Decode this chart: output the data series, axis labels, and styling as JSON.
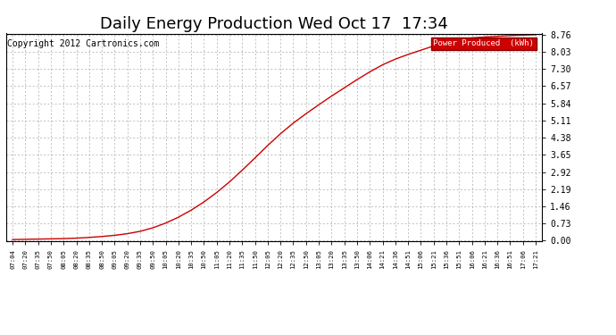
{
  "title": "Daily Energy Production Wed Oct 17  17:34",
  "copyright": "Copyright 2012 Cartronics.com",
  "legend_label": "Power Produced  (kWh)",
  "y_ticks": [
    0.0,
    0.73,
    1.46,
    2.19,
    2.92,
    3.65,
    4.38,
    5.11,
    5.84,
    6.57,
    7.3,
    8.03,
    8.76
  ],
  "y_max": 8.76,
  "y_min": 0.0,
  "line_color": "#cc0000",
  "bg_color": "#ffffff",
  "grid_color": "#aaaaaa",
  "x_labels": [
    "07:04",
    "07:20",
    "07:35",
    "07:50",
    "08:05",
    "08:20",
    "08:35",
    "08:50",
    "09:05",
    "09:20",
    "09:35",
    "09:50",
    "10:05",
    "10:20",
    "10:35",
    "10:50",
    "11:05",
    "11:20",
    "11:35",
    "11:50",
    "12:05",
    "12:20",
    "12:35",
    "12:50",
    "13:05",
    "13:20",
    "13:35",
    "13:50",
    "14:06",
    "14:21",
    "14:36",
    "14:51",
    "15:06",
    "15:21",
    "15:36",
    "15:51",
    "16:06",
    "16:21",
    "16:36",
    "16:51",
    "17:06",
    "17:21"
  ],
  "legend_bg": "#cc0000",
  "legend_text_color": "#ffffff",
  "title_fontsize": 13,
  "copyright_fontsize": 7,
  "y_values": [
    0.05,
    0.06,
    0.07,
    0.08,
    0.09,
    0.11,
    0.14,
    0.18,
    0.23,
    0.3,
    0.4,
    0.55,
    0.75,
    1.0,
    1.3,
    1.65,
    2.05,
    2.5,
    3.0,
    3.52,
    4.05,
    4.55,
    5.0,
    5.4,
    5.78,
    6.15,
    6.5,
    6.85,
    7.18,
    7.48,
    7.72,
    7.92,
    8.1,
    8.28,
    8.44,
    8.56,
    8.62,
    8.66,
    8.69,
    8.72,
    8.74,
    8.76
  ]
}
